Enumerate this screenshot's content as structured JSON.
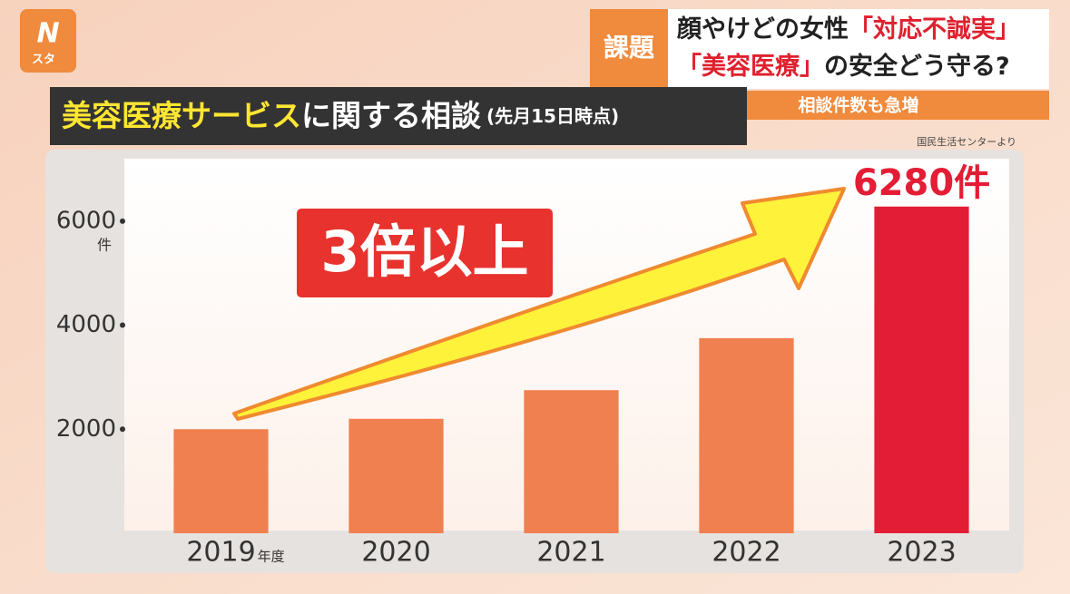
{
  "header": {
    "logo": "スタ",
    "topic": "課題",
    "headline_1": {
      "plain": "顔やけどの女性",
      "red": "「対応不誠実」"
    },
    "headline_2": {
      "red": "「美容医療」",
      "plain": "の安全どう守る?"
    },
    "subhead": "相談件数も急増"
  },
  "chart_data": {
    "type": "bar",
    "title": {
      "highlight": "美容医療サービス",
      "rest": "に関する相談"
    },
    "subtitle": "(先月15日時点)",
    "source": "国民生活センターより",
    "annotation": "3倍以上",
    "y_unit": "件",
    "x_unit": "年度",
    "categories": [
      "2019",
      "2020",
      "2021",
      "2022",
      "2023"
    ],
    "values": [
      2000,
      2200,
      2750,
      3750,
      6280
    ],
    "value_labels": [
      null,
      null,
      null,
      null,
      "6280件"
    ],
    "colors": [
      "#f0804f",
      "#f0804f",
      "#f0804f",
      "#f0804f",
      "#e31d35"
    ],
    "ylim": [
      0,
      7200
    ],
    "yticks": [
      2000,
      4000,
      6000
    ],
    "grid": false
  }
}
